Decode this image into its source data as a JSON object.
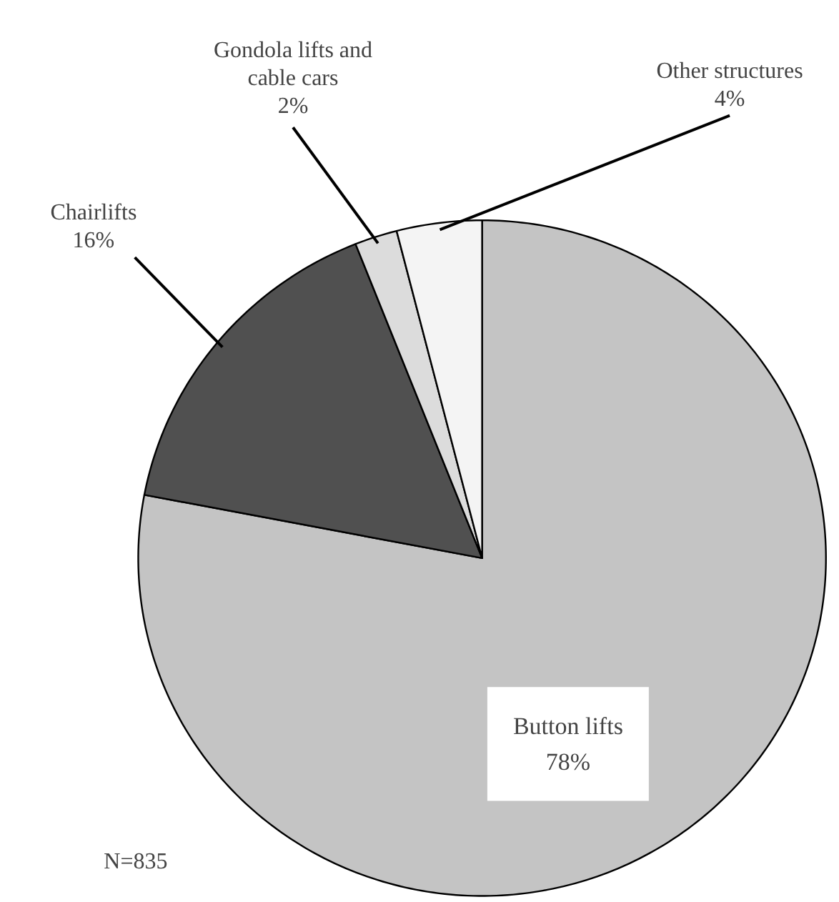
{
  "chart_data": {
    "type": "pie",
    "categories": [
      "Button lifts",
      "Chairlifts",
      "Gondola lifts and cable cars",
      "Other structures"
    ],
    "values": [
      78,
      16,
      2,
      4
    ],
    "value_labels": [
      "78%",
      "16%",
      "2%",
      "4%"
    ],
    "colors": [
      "#c4c4c4",
      "#505050",
      "#dcdcdc",
      "#f4f4f4"
    ],
    "annotations": [
      "N=835"
    ]
  }
}
